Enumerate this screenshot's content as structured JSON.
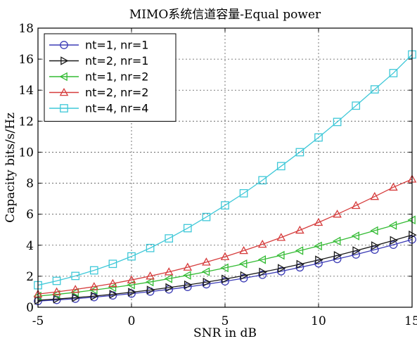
{
  "chart_data": {
    "type": "line",
    "title": "MIMO系统信道容量-Equal power",
    "xlabel": "SNR in dB",
    "ylabel": "Capacity bits/s/Hz",
    "xlim": [
      -5,
      15
    ],
    "ylim": [
      0,
      18
    ],
    "xticks": [
      "-5",
      "0",
      "5",
      "10",
      "15"
    ],
    "yticks": [
      "0",
      "2",
      "4",
      "6",
      "8",
      "10",
      "12",
      "14",
      "16",
      "18"
    ],
    "grid": true,
    "legend_position": "top-left",
    "x": [
      -5,
      -4,
      -3,
      -2,
      -1,
      0,
      1,
      2,
      3,
      4,
      5,
      6,
      7,
      8,
      9,
      10,
      11,
      12,
      13,
      14,
      15
    ],
    "series": [
      {
        "name": "nt=1, nr=1",
        "color": "#3b3bb5",
        "marker": "circle",
        "values": [
          0.4,
          0.47,
          0.55,
          0.65,
          0.76,
          0.88,
          1.01,
          1.15,
          1.31,
          1.48,
          1.67,
          1.87,
          2.09,
          2.32,
          2.57,
          2.83,
          3.11,
          3.4,
          3.71,
          4.03,
          4.37
        ]
      },
      {
        "name": "nt=2, nr=1",
        "color": "#1a1a1a",
        "marker": "triangle-right",
        "values": [
          0.45,
          0.53,
          0.62,
          0.72,
          0.84,
          0.97,
          1.11,
          1.27,
          1.44,
          1.62,
          1.82,
          2.04,
          2.27,
          2.51,
          2.77,
          3.05,
          3.34,
          3.65,
          3.97,
          4.31,
          4.66
        ]
      },
      {
        "name": "nt=1, nr=2",
        "color": "#33bb33",
        "marker": "triangle-left",
        "values": [
          0.72,
          0.83,
          0.96,
          1.11,
          1.27,
          1.44,
          1.63,
          1.84,
          2.06,
          2.29,
          2.54,
          2.8,
          3.07,
          3.35,
          3.65,
          3.95,
          4.27,
          4.6,
          4.94,
          5.28,
          5.63
        ]
      },
      {
        "name": "nt=2, nr=2",
        "color": "#d63c3c",
        "marker": "triangle-up",
        "values": [
          0.85,
          0.99,
          1.15,
          1.33,
          1.53,
          1.76,
          2.01,
          2.28,
          2.58,
          2.91,
          3.26,
          3.65,
          4.06,
          4.5,
          4.97,
          5.47,
          6.0,
          6.56,
          7.14,
          7.74,
          8.26
        ]
      },
      {
        "name": "nt=4, nr=4",
        "color": "#3fc8d8",
        "marker": "square",
        "values": [
          1.42,
          1.7,
          2.02,
          2.38,
          2.8,
          3.28,
          3.82,
          4.44,
          5.1,
          5.82,
          6.57,
          7.35,
          8.19,
          9.1,
          10.0,
          10.95,
          11.95,
          13.0,
          14.05,
          15.1,
          16.3
        ]
      }
    ]
  }
}
